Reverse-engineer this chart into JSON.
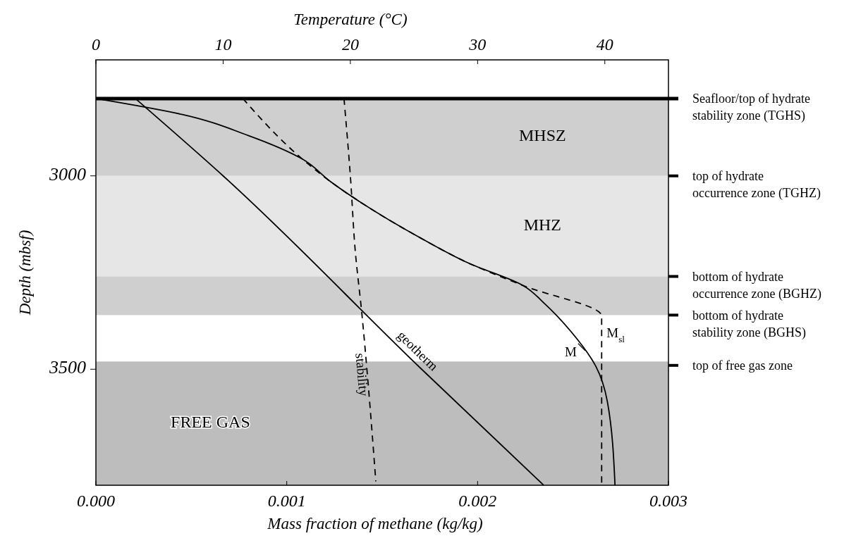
{
  "chart_data": {
    "type": "line",
    "xlabel": "Mass fraction of methane (kg/kg)",
    "ylabel": "Depth (mbsf)",
    "x2label": "Temperature (°C)",
    "xlim": [
      0,
      0.003
    ],
    "xticks": [
      {
        "value": 0,
        "label": "0.000"
      },
      0.001,
      0.002,
      0.003
    ],
    "x2lim": [
      0,
      45
    ],
    "x2ticks": [
      0,
      10,
      20,
      30,
      40
    ],
    "ylim": [
      3800,
      2700
    ],
    "yticks": [
      3000,
      3500
    ],
    "grid": false,
    "series": [
      {
        "name": "geotherm",
        "color": "#000000",
        "line_style": "solid",
        "axis": "x2",
        "x": [
          3.1,
          10,
          25.6,
          35.2
        ],
        "values": [
          2800,
          3000,
          3500,
          3800
        ]
      },
      {
        "name": "stability",
        "color": "#000000",
        "line_style": "dashed",
        "axis": "x2",
        "x": [
          19.5,
          20.0,
          20.4,
          20.9,
          21.3,
          22.0
        ],
        "values": [
          2800,
          3000,
          3200,
          3355,
          3500,
          3790
        ]
      },
      {
        "name": "M",
        "color": "#000000",
        "line_style": "solid",
        "x": [
          0,
          0.00045,
          0.0008,
          0.00108,
          0.00123,
          0.00134,
          0.00171,
          0.00195,
          0.00224,
          0.00235,
          0.00249,
          0.00262,
          0.00268,
          0.00272
        ],
        "values": [
          2800,
          2841,
          2896,
          2956,
          3015,
          3053,
          3163,
          3225,
          3284,
          3330,
          3403,
          3493,
          3584,
          3800
        ]
      },
      {
        "name": "M$_{sl}$",
        "color": "#000000",
        "line_style": "dashed",
        "x": [
          0.00077,
          0.00109,
          0.00123,
          0.00134,
          0.00171,
          0.00195,
          0.00224,
          0.00265,
          0.00265
        ],
        "values": [
          2800,
          2960,
          3015,
          3053,
          3163,
          3225,
          3284,
          3362,
          3800
        ]
      }
    ],
    "bands": [
      {
        "axis": "y",
        "from": 2800,
        "to": 3000,
        "label": "MHSZ",
        "color": "#cfcfcf"
      },
      {
        "axis": "y",
        "from": 3000,
        "to": 3260,
        "label": "MHZ",
        "color": "#e6e6e6"
      },
      {
        "axis": "y",
        "from": 3260,
        "to": 3360,
        "color": "#cfcfcf"
      },
      {
        "axis": "y",
        "from": 3480,
        "to": 3800,
        "label": "FREE GAS",
        "color": "#bdbdbd"
      }
    ],
    "ref_lines": [
      {
        "axis": "y",
        "value": 2800,
        "label": "Seafloor/top of hydrate stability zone (TGHS)",
        "line_style": "solid"
      },
      {
        "axis": "y",
        "value": 3000,
        "label": "top of hydrate occurrence zone (TGHZ)"
      },
      {
        "axis": "y",
        "value": 3260,
        "label": "bottom of hydrate occurrence zone (BGHZ)"
      },
      {
        "axis": "y",
        "value": 3360,
        "label": "bottom of hydrate stability zone (BGHS)"
      },
      {
        "axis": "y",
        "value": 3490,
        "label": "top of free gas zone"
      }
    ]
  }
}
